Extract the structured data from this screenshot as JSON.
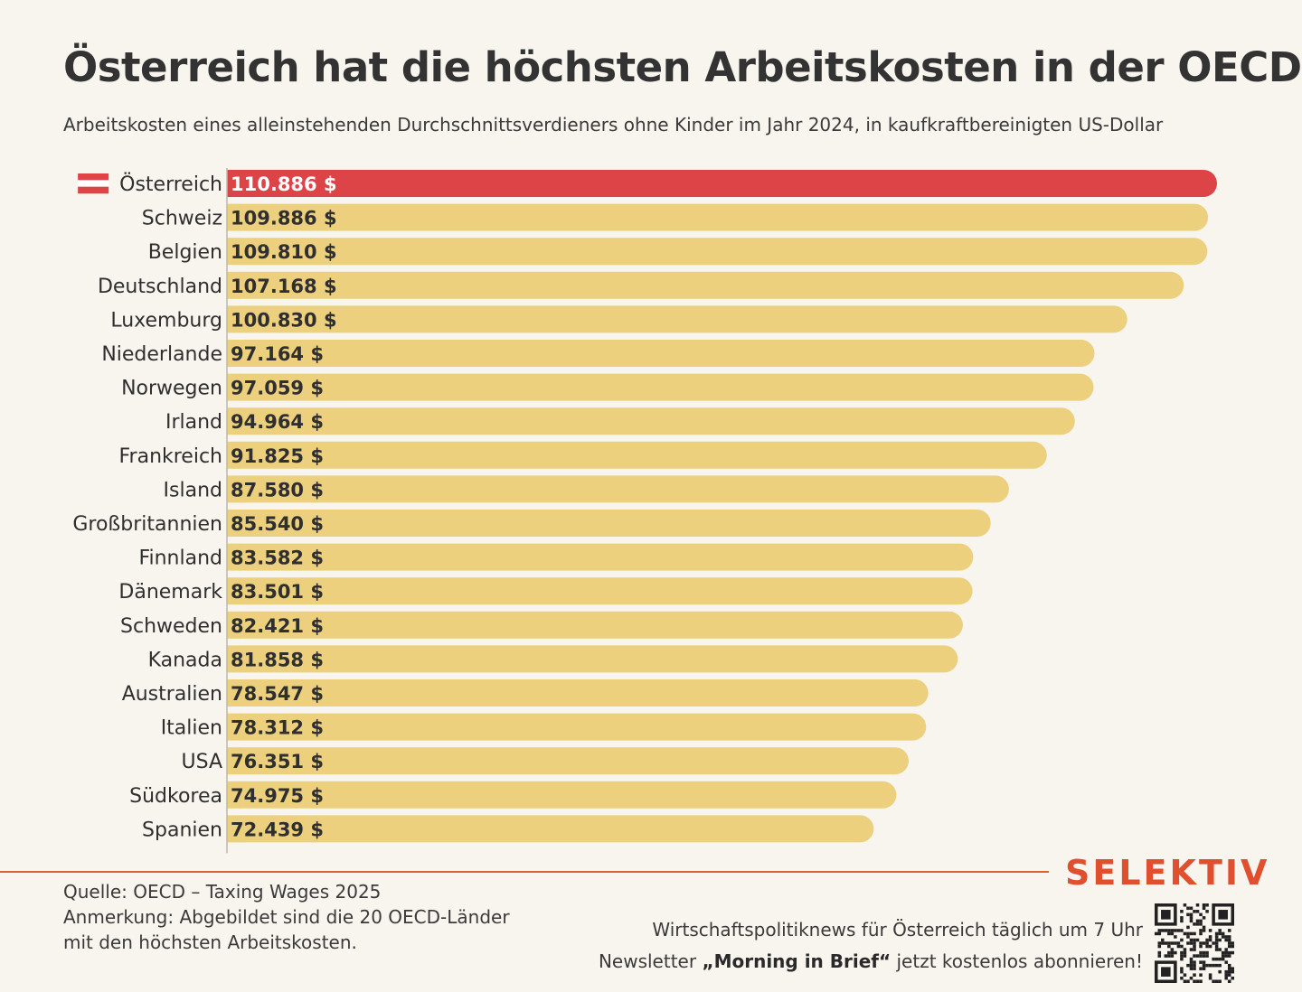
{
  "header": {
    "title": "Österreich hat die höchsten Arbeitskosten in der OECD",
    "subtitle": "Arbeitskosten eines alleinstehenden Durchschnittsverdieners ohne Kinder im Jahr 2024, in kaufkraftbereinigten US-Dollar"
  },
  "chart_data": {
    "type": "bar",
    "orientation": "horizontal",
    "title": "Österreich hat die höchsten Arbeitskosten in der OECD",
    "subtitle": "Arbeitskosten eines alleinstehenden Durchschnittsverdieners ohne Kinder im Jahr 2024, in kaufkraftbereinigten US-Dollar",
    "categories": [
      "Österreich",
      "Schweiz",
      "Belgien",
      "Deutschland",
      "Luxemburg",
      "Niederlande",
      "Norwegen",
      "Irland",
      "Frankreich",
      "Island",
      "Großbritannien",
      "Finnland",
      "Dänemark",
      "Schweden",
      "Kanada",
      "Australien",
      "Italien",
      "USA",
      "Südkorea",
      "Spanien"
    ],
    "values": [
      110886,
      109886,
      109810,
      107168,
      100830,
      97164,
      97059,
      94964,
      91825,
      87580,
      85540,
      83582,
      83501,
      82421,
      81858,
      78547,
      78312,
      76351,
      74975,
      72439
    ],
    "value_labels": [
      "110.886 $",
      "109.886 $",
      "109.810 $",
      "107.168 $",
      "100.830 $",
      "97.164 $",
      "97.059 $",
      "94.964 $",
      "91.825 $",
      "87.580 $",
      "85.540 $",
      "83.582 $",
      "83.501 $",
      "82.421 $",
      "81.858 $",
      "78.547 $",
      "78.312 $",
      "76.351 $",
      "74.975 $",
      "72.439 $"
    ],
    "highlight": "Österreich",
    "highlight_icon": "austria-flag-icon",
    "colors": {
      "bar": "#ecd07e",
      "highlight": "#dc4447",
      "highlight_label": "#ffffff",
      "label": "#2f2f2f"
    },
    "xlim": [
      0,
      110886
    ],
    "grid": false,
    "legend": "none"
  },
  "footer": {
    "source": "Quelle: OECD – Taxing Wages 2025",
    "note_line1": "Anmerkung: Abgebildet sind die 20 OECD-Länder",
    "note_line2": "mit den höchsten Arbeitskosten.",
    "brand": "SELEKTIV",
    "promo_line1": "Wirtschaftspolitiknews für Österreich täglich um 7 Uhr",
    "promo_line2_pre": "Newsletter ",
    "promo_line2_bold": "„Morning in Brief“",
    "promo_line2_post": " jetzt kostenlos abonnieren!",
    "qr_icon": "qr-code-icon",
    "accent_color": "#e0502f"
  }
}
